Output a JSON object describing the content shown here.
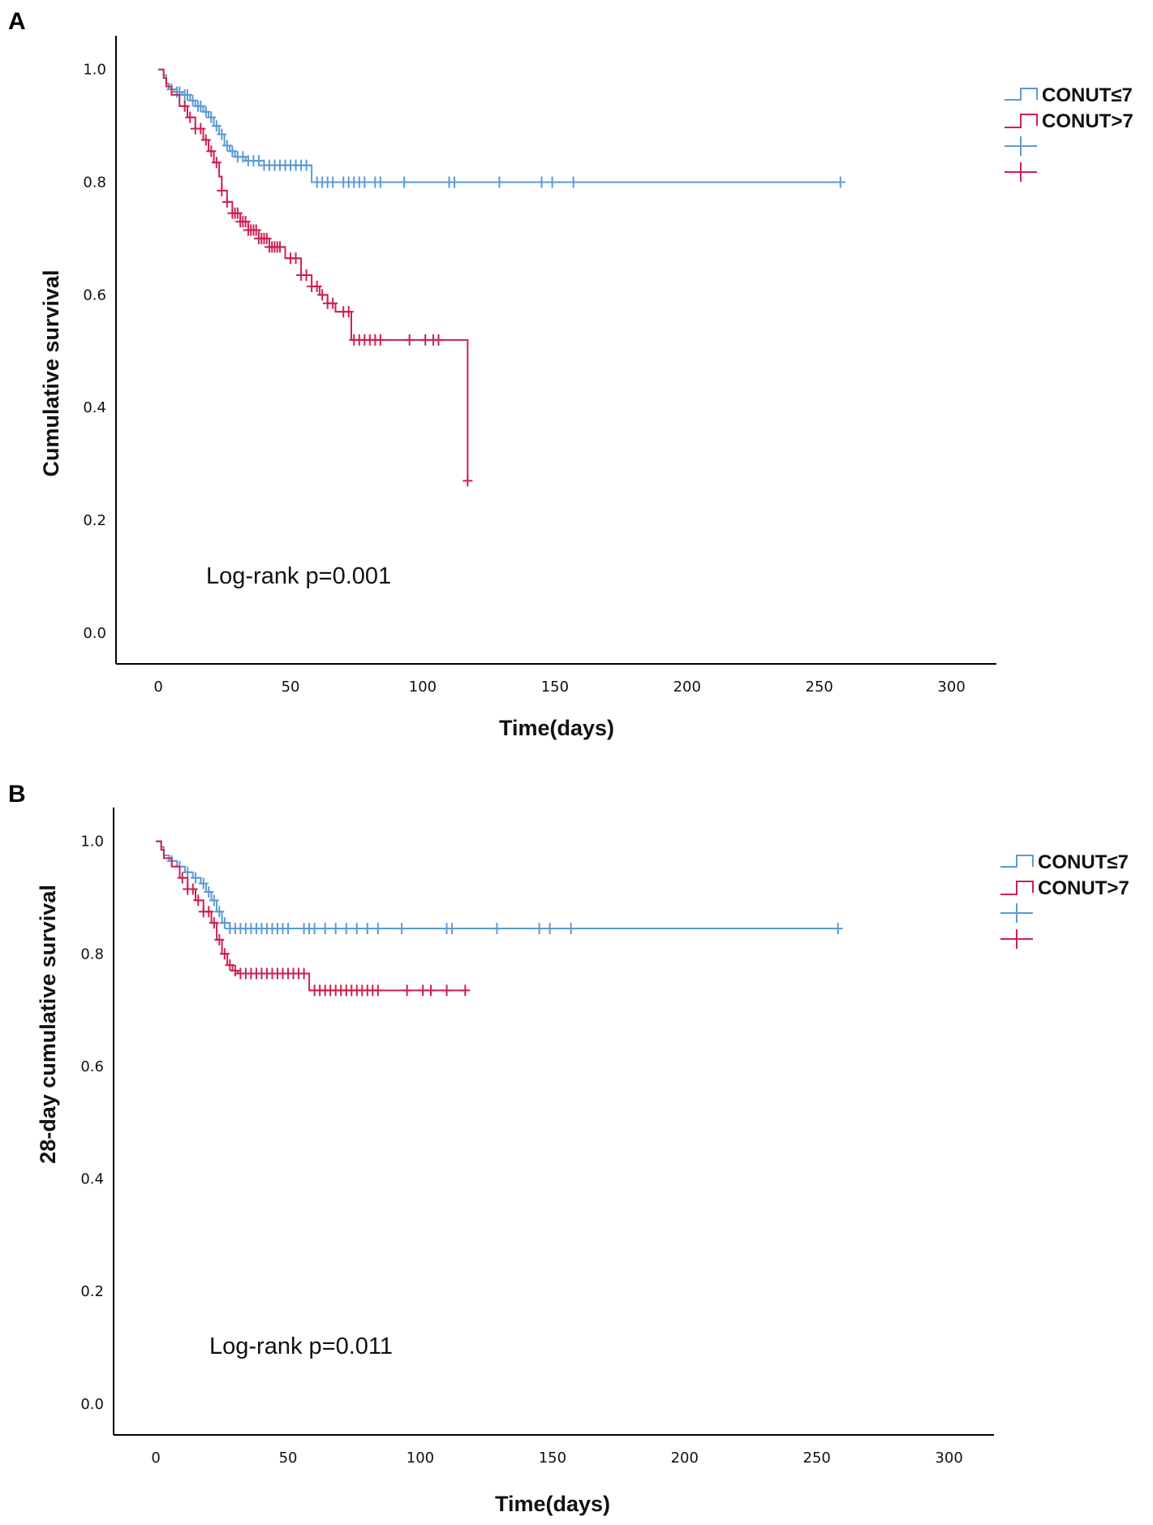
{
  "chart_data": [
    {
      "panel": "A",
      "type": "line",
      "subtype": "kaplan-meier",
      "xlabel": "Time(days)",
      "ylabel": "Cumulative survival",
      "xlim": [
        -16,
        317
      ],
      "ylim": [
        -0.055,
        1.06
      ],
      "xticks": [
        "0",
        "50",
        "100",
        "150",
        "200",
        "250",
        "300"
      ],
      "yticks": [
        "0.0",
        "0.2",
        "0.4",
        "0.6",
        "0.8",
        "1.0"
      ],
      "annotation": "Log-rank p=0.001",
      "legend": {
        "position": "top-right",
        "entries": [
          "CONUT≤7",
          "CONUT>7",
          "",
          ""
        ]
      },
      "series": [
        {
          "name": "CONUT≤7",
          "color": "#5b9bd5",
          "steps": [
            [
              0,
              1.0
            ],
            [
              2,
              0.99
            ],
            [
              3,
              0.975
            ],
            [
              4,
              0.965
            ],
            [
              6,
              0.96
            ],
            [
              9,
              0.955
            ],
            [
              12,
              0.945
            ],
            [
              14,
              0.935
            ],
            [
              17,
              0.925
            ],
            [
              19,
              0.915
            ],
            [
              21,
              0.9
            ],
            [
              23,
              0.885
            ],
            [
              25,
              0.865
            ],
            [
              27,
              0.855
            ],
            [
              29,
              0.845
            ],
            [
              33,
              0.838
            ],
            [
              40,
              0.83
            ],
            [
              58,
              0.8
            ]
          ],
          "end": 258,
          "censored": [
            5,
            7,
            8,
            10,
            11,
            13,
            15,
            16,
            18,
            20,
            22,
            24,
            26,
            28,
            30,
            32,
            34,
            36,
            38,
            40,
            42,
            44,
            46,
            48,
            50,
            52,
            54,
            56,
            60,
            62,
            64,
            66,
            70,
            72,
            74,
            76,
            78,
            82,
            84,
            93,
            110,
            112,
            129,
            145,
            149,
            157,
            258
          ]
        },
        {
          "name": "CONUT>7",
          "color": "#cc2150",
          "steps": [
            [
              0,
              1.0
            ],
            [
              2,
              0.985
            ],
            [
              3,
              0.97
            ],
            [
              5,
              0.955
            ],
            [
              8,
              0.935
            ],
            [
              11,
              0.915
            ],
            [
              14,
              0.895
            ],
            [
              17,
              0.875
            ],
            [
              19,
              0.855
            ],
            [
              21,
              0.835
            ],
            [
              23,
              0.81
            ],
            [
              24,
              0.785
            ],
            [
              26,
              0.765
            ],
            [
              28,
              0.745
            ],
            [
              31,
              0.73
            ],
            [
              34,
              0.715
            ],
            [
              38,
              0.7
            ],
            [
              42,
              0.685
            ],
            [
              48,
              0.665
            ],
            [
              54,
              0.635
            ],
            [
              58,
              0.615
            ],
            [
              61,
              0.6
            ],
            [
              64,
              0.585
            ],
            [
              67,
              0.57
            ],
            [
              73,
              0.52
            ],
            [
              117,
              0.27
            ]
          ],
          "end": 117,
          "censored": [
            10,
            12,
            14,
            16,
            18,
            20,
            22,
            24,
            26,
            28,
            29,
            30,
            31,
            32,
            33,
            34,
            35,
            36,
            37,
            38,
            39,
            40,
            41,
            42,
            43,
            44,
            45,
            46,
            50,
            52,
            54,
            56,
            58,
            60,
            62,
            64,
            66,
            70,
            72,
            74,
            76,
            78,
            80,
            82,
            84,
            95,
            101,
            104,
            106,
            117
          ]
        }
      ]
    },
    {
      "panel": "B",
      "type": "line",
      "subtype": "kaplan-meier",
      "xlabel": "Time(days)",
      "ylabel": "28-day cumulative survival",
      "xlim": [
        -16,
        317
      ],
      "ylim": [
        -0.055,
        1.06
      ],
      "xticks": [
        "0",
        "50",
        "100",
        "150",
        "200",
        "250",
        "300"
      ],
      "yticks": [
        "0.0",
        "0.2",
        "0.4",
        "0.6",
        "0.8",
        "1.0"
      ],
      "annotation": "Log-rank p=0.011",
      "legend": {
        "position": "top-right",
        "entries": [
          "CONUT≤7",
          "CONUT>7",
          "",
          ""
        ]
      },
      "series": [
        {
          "name": "CONUT≤7",
          "color": "#5b9bd5",
          "steps": [
            [
              0,
              1.0
            ],
            [
              2,
              0.99
            ],
            [
              3,
              0.975
            ],
            [
              5,
              0.965
            ],
            [
              8,
              0.955
            ],
            [
              11,
              0.945
            ],
            [
              14,
              0.935
            ],
            [
              17,
              0.925
            ],
            [
              19,
              0.91
            ],
            [
              21,
              0.895
            ],
            [
              23,
              0.875
            ],
            [
              25,
              0.855
            ],
            [
              28,
              0.845
            ]
          ],
          "end": 258,
          "censored": [
            6,
            9,
            12,
            15,
            18,
            20,
            22,
            24,
            26,
            28,
            30,
            32,
            34,
            36,
            38,
            40,
            42,
            44,
            46,
            48,
            50,
            56,
            58,
            60,
            64,
            68,
            72,
            76,
            80,
            84,
            93,
            110,
            112,
            129,
            145,
            149,
            157,
            258
          ]
        },
        {
          "name": "CONUT>7",
          "color": "#cc2150",
          "steps": [
            [
              0,
              1.0
            ],
            [
              2,
              0.985
            ],
            [
              3,
              0.97
            ],
            [
              6,
              0.955
            ],
            [
              9,
              0.935
            ],
            [
              12,
              0.915
            ],
            [
              15,
              0.895
            ],
            [
              18,
              0.875
            ],
            [
              21,
              0.855
            ],
            [
              23,
              0.825
            ],
            [
              25,
              0.8
            ],
            [
              27,
              0.78
            ],
            [
              29,
              0.77
            ],
            [
              31,
              0.765
            ],
            [
              58,
              0.735
            ]
          ],
          "end": 118,
          "censored": [
            10,
            12,
            14,
            16,
            18,
            20,
            22,
            24,
            26,
            28,
            30,
            32,
            34,
            36,
            38,
            40,
            42,
            44,
            46,
            48,
            50,
            52,
            54,
            56,
            60,
            62,
            64,
            66,
            68,
            70,
            72,
            74,
            76,
            78,
            80,
            82,
            84,
            95,
            101,
            104,
            110,
            117
          ]
        }
      ]
    }
  ]
}
